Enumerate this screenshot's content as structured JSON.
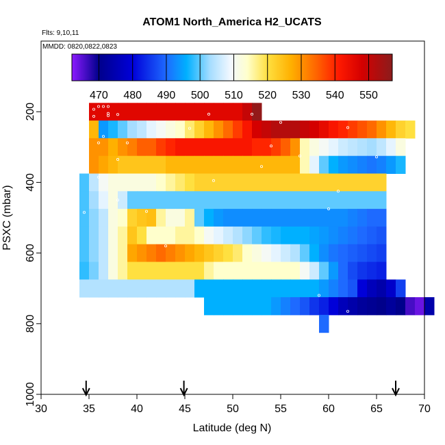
{
  "chart_data": {
    "type": "heatmap",
    "title": "ATOM1 North_America H2_UCATS",
    "annotations": {
      "flights": "Flts: 9,10,11",
      "dates": "MMDD: 0820,0822,0823"
    },
    "xlabel": "Latitude (deg N)",
    "ylabel": "PSXC (mbar)",
    "xlim": [
      30,
      70
    ],
    "ylim": [
      1000,
      0
    ],
    "xticks": [
      "30",
      "35",
      "40",
      "45",
      "50",
      "55",
      "60",
      "65",
      "70"
    ],
    "xtick_values": [
      30,
      35,
      40,
      45,
      50,
      55,
      60,
      65,
      70
    ],
    "yticks": [
      "200",
      "400",
      "600",
      "800",
      "1000"
    ],
    "ytick_values": [
      200,
      400,
      600,
      800,
      1000
    ],
    "colorbar": {
      "min": 462,
      "max": 557,
      "ticks": [
        "470",
        "480",
        "490",
        "500",
        "510",
        "520",
        "530",
        "540",
        "550"
      ],
      "tick_values": [
        470,
        480,
        490,
        500,
        510,
        520,
        530,
        540,
        550
      ],
      "stops": [
        {
          "v": 462,
          "c": "#8c1aff"
        },
        {
          "v": 470,
          "c": "#00008b"
        },
        {
          "v": 480,
          "c": "#0000d9"
        },
        {
          "v": 490,
          "c": "#1e6aff"
        },
        {
          "v": 496,
          "c": "#00b0ff"
        },
        {
          "v": 503,
          "c": "#a6ddff"
        },
        {
          "v": 509,
          "c": "#f2f8ff"
        },
        {
          "v": 514,
          "c": "#ffffcc"
        },
        {
          "v": 520,
          "c": "#ffe040"
        },
        {
          "v": 527,
          "c": "#ffb000"
        },
        {
          "v": 534,
          "c": "#ff6a00"
        },
        {
          "v": 541,
          "c": "#ff1a00"
        },
        {
          "v": 548,
          "c": "#d40000"
        },
        {
          "v": 557,
          "c": "#8b1c1c"
        }
      ]
    },
    "cell_width_deg": 1,
    "cell_height_mbar": 50,
    "rows": [
      {
        "p": 200,
        "lat0": 35,
        "values": [
          546,
          546,
          546,
          546,
          546,
          546,
          546,
          546,
          546,
          546,
          546,
          546,
          546,
          546,
          546,
          546,
          550,
          556
        ]
      },
      {
        "p": 250,
        "lat0": 35,
        "values": [
          526,
          494,
          497,
          500,
          503,
          505,
          508,
          510,
          512,
          514,
          518,
          522,
          526,
          530,
          534,
          538,
          542,
          548,
          550,
          552,
          552,
          552,
          550,
          548,
          545,
          542,
          540,
          538,
          536,
          534,
          530,
          526,
          522,
          520
        ]
      },
      {
        "p": 300,
        "lat0": 35,
        "values": [
          530,
          530,
          527,
          530,
          532,
          535,
          535,
          538,
          540,
          542,
          542,
          542,
          542,
          542,
          542,
          542,
          542,
          540,
          540,
          538,
          535,
          530,
          515,
          512,
          510,
          508,
          506,
          505,
          504,
          503,
          505,
          508,
          512
        ]
      },
      {
        "p": 350,
        "lat0": 35,
        "values": [
          530,
          528,
          526,
          524,
          524,
          524,
          524,
          524,
          526,
          526,
          526,
          526,
          526,
          526,
          526,
          526,
          526,
          526,
          526,
          526,
          526,
          526,
          515,
          508,
          500,
          496,
          494,
          493,
          492,
          491,
          492,
          494,
          497
        ]
      },
      {
        "p": 400,
        "lat0": 34,
        "values": [
          499,
          505,
          510,
          512,
          512,
          512,
          512,
          512,
          514,
          516,
          518,
          520,
          522,
          522,
          522,
          522,
          522,
          522,
          522,
          522,
          522,
          522,
          522,
          522,
          522,
          522,
          522,
          522,
          522,
          522,
          522,
          522
        ]
      },
      {
        "p": 450,
        "lat0": 34,
        "values": [
          499,
          503,
          508,
          512,
          506,
          500,
          500,
          500,
          500,
          500,
          500,
          500,
          500,
          500,
          500,
          500,
          500,
          500,
          500,
          500,
          500,
          500,
          500,
          500,
          500,
          500,
          500,
          500,
          500,
          500,
          500,
          500
        ]
      },
      {
        "p": 500,
        "lat0": 34,
        "values": [
          499,
          502,
          505,
          512,
          514,
          522,
          524,
          525,
          516,
          512,
          512,
          516,
          500,
          496,
          494,
          493,
          493,
          493,
          493,
          493,
          493,
          493,
          493,
          493,
          493,
          493,
          493,
          493,
          492,
          491,
          490,
          490
        ]
      },
      {
        "p": 550,
        "lat0": 34,
        "values": [
          499,
          502,
          505,
          512,
          516,
          524,
          520,
          514,
          514,
          514,
          516,
          516,
          514,
          510,
          508,
          506,
          504,
          502,
          500,
          498,
          497,
          496,
          496,
          496,
          495,
          494,
          493,
          492,
          491,
          490,
          489,
          488
        ]
      },
      {
        "p": 600,
        "lat0": 34,
        "values": [
          499,
          502,
          505,
          512,
          516,
          528,
          530,
          532,
          534,
          532,
          530,
          528,
          526,
          524,
          522,
          520,
          518,
          514,
          512,
          510,
          508,
          506,
          504,
          500,
          496,
          493,
          491,
          490,
          489,
          488,
          487,
          486
        ]
      },
      {
        "p": 650,
        "lat0": 34,
        "values": [
          498,
          501,
          505,
          512,
          516,
          520,
          520,
          520,
          520,
          520,
          520,
          520,
          520,
          516,
          514,
          514,
          514,
          514,
          514,
          514,
          514,
          514,
          514,
          510,
          506,
          500,
          494,
          490,
          487,
          485,
          484,
          483
        ]
      },
      {
        "p": 700,
        "lat0": 34,
        "values": [
          504,
          504,
          504,
          504,
          504,
          504,
          504,
          504,
          504,
          504,
          504,
          504,
          496,
          496,
          496,
          496,
          496,
          496,
          496,
          496,
          496,
          496,
          496,
          496,
          496,
          494,
          492,
          490,
          488,
          480,
          476,
          474,
          478,
          486
        ]
      },
      {
        "p": 750,
        "lat0": 47,
        "values": [
          496,
          496,
          496,
          496,
          496,
          496,
          496,
          494,
          492,
          490,
          488,
          485,
          483,
          480,
          476,
          474,
          472,
          471,
          470,
          472,
          470,
          466,
          464,
          474
        ]
      },
      {
        "p": 800,
        "lat0": 59,
        "values": [
          490
        ]
      }
    ],
    "sample_points": [
      [
        36,
        185
      ],
      [
        36.5,
        185
      ],
      [
        37,
        185
      ],
      [
        35.5,
        193
      ],
      [
        37,
        205
      ],
      [
        38,
        208
      ],
      [
        47.5,
        207
      ],
      [
        52,
        207
      ],
      [
        56.5,
        200
      ],
      [
        57,
        200
      ],
      [
        61,
        199
      ],
      [
        62.5,
        210
      ],
      [
        35.5,
        213
      ],
      [
        37,
        211
      ],
      [
        69,
        213
      ],
      [
        55,
        230
      ],
      [
        45.5,
        247
      ],
      [
        62,
        245
      ],
      [
        36.5,
        270
      ],
      [
        36,
        288
      ],
      [
        39,
        288
      ],
      [
        54,
        297
      ],
      [
        57,
        325
      ],
      [
        65,
        328
      ],
      [
        38,
        335
      ],
      [
        53,
        355
      ],
      [
        36,
        385
      ],
      [
        48,
        395
      ],
      [
        38,
        450
      ],
      [
        61,
        425
      ],
      [
        60,
        475
      ],
      [
        41,
        482
      ],
      [
        33.5,
        575
      ],
      [
        43,
        580
      ],
      [
        34.5,
        485
      ],
      [
        59,
        720
      ],
      [
        62,
        765
      ],
      [
        65,
        795
      ]
    ],
    "arrows_lat": [
      34.7,
      44.9,
      67
    ]
  }
}
